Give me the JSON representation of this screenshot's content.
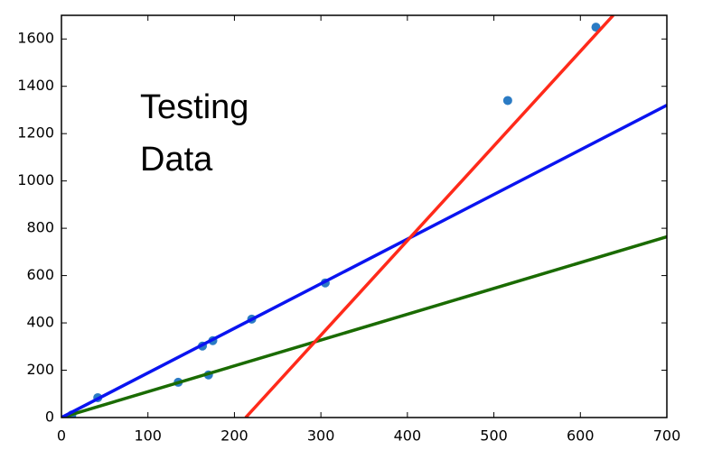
{
  "chart_data": {
    "type": "scatter",
    "annotation": [
      "Testing",
      "Data"
    ],
    "xlim": [
      0,
      700
    ],
    "ylim": [
      0,
      1700
    ],
    "xticks": [
      0,
      100,
      200,
      300,
      400,
      500,
      600,
      700
    ],
    "yticks": [
      0,
      200,
      400,
      600,
      800,
      1000,
      1200,
      1400,
      1600
    ],
    "points": {
      "color": "#2b7bc4",
      "x": [
        12,
        42,
        135,
        163,
        175,
        170,
        220,
        305,
        516,
        618
      ],
      "y": [
        11,
        84,
        149,
        302,
        325,
        180,
        416,
        569,
        1340,
        1650
      ]
    },
    "lines": [
      {
        "color": "#1a6b00",
        "x": [
          0,
          700
        ],
        "y": [
          0,
          764
        ]
      },
      {
        "color": "#0a14f0",
        "x": [
          0,
          700
        ],
        "y": [
          0,
          1320
        ]
      },
      {
        "color": "#ff2a1a",
        "x": [
          213,
          638
        ],
        "y": [
          0,
          1700
        ]
      }
    ]
  }
}
